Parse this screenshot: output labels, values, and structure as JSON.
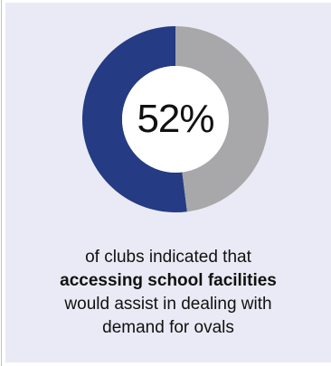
{
  "chart_data": {
    "type": "pie",
    "variant": "donut",
    "center_label": "52%",
    "slices": [
      {
        "value": 52,
        "color": "#253b83"
      },
      {
        "value": 48,
        "color": "#a8a8aa"
      }
    ]
  },
  "caption": {
    "line1": "of clubs indicated that",
    "line2": "accessing school facilities",
    "line3": "would assist in dealing with",
    "line4": "demand for ovals"
  },
  "colors": {
    "background": "#e9eaf5",
    "highlight": "#253b83",
    "remainder": "#a8a8aa",
    "hole": "#ffffff"
  }
}
